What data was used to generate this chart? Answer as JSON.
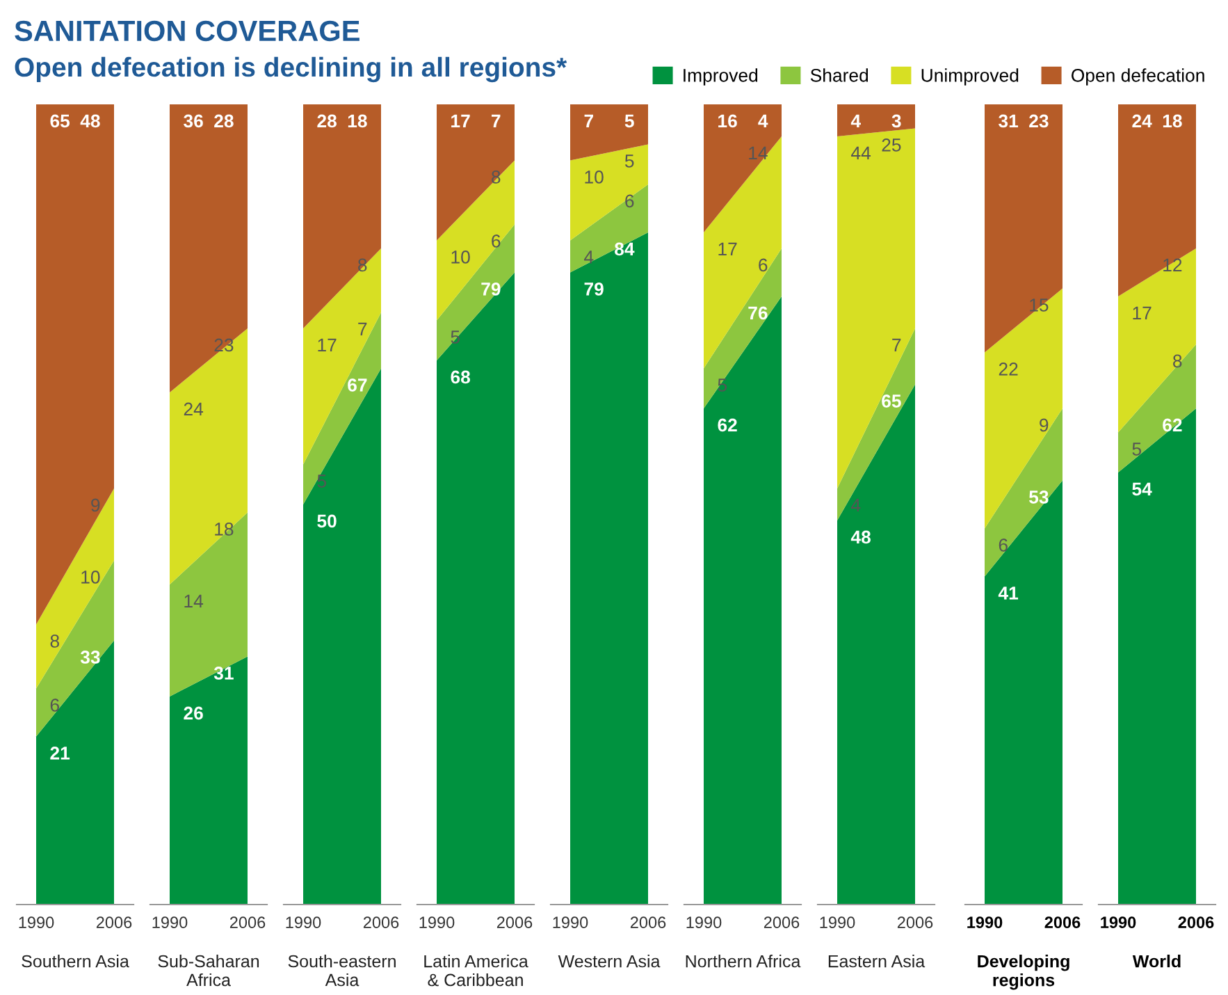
{
  "chart_data": [
    {
      "type": "area",
      "stacked": true,
      "title": "SANITATION COVERAGE",
      "subtitle": "Open defecation is declining in all regions*",
      "xlabel": "Southern Asia",
      "categories": [
        "1990",
        "2006"
      ],
      "data_labels": true,
      "legend": "top right",
      "series": [
        {
          "name": "Improved",
          "color": "#00923f",
          "values": [
            21,
            33
          ]
        },
        {
          "name": "Shared",
          "color": "#8dc63f",
          "values": [
            6,
            10
          ]
        },
        {
          "name": "Unimproved",
          "color": "#d7df23",
          "values": [
            8,
            9
          ]
        },
        {
          "name": "Open defecation",
          "color": "#b65c28",
          "values": [
            65,
            48
          ]
        }
      ]
    },
    {
      "type": "area",
      "stacked": true,
      "xlabel": "Sub-Saharan Africa",
      "categories": [
        "1990",
        "2006"
      ],
      "data_labels": true,
      "series": [
        {
          "color": "#00923f",
          "values": [
            26,
            31
          ]
        },
        {
          "color": "#8dc63f",
          "values": [
            14,
            18
          ]
        },
        {
          "color": "#d7df23",
          "values": [
            24,
            23
          ]
        },
        {
          "color": "#b65c28",
          "values": [
            36,
            28
          ]
        }
      ]
    },
    {
      "type": "area",
      "stacked": true,
      "xlabel": "South-eastern Asia",
      "categories": [
        "1990",
        "2006"
      ],
      "data_labels": true,
      "series": [
        {
          "color": "#00923f",
          "values": [
            50,
            67
          ]
        },
        {
          "color": "#8dc63f",
          "values": [
            5,
            7
          ]
        },
        {
          "color": "#d7df23",
          "values": [
            17,
            8
          ]
        },
        {
          "color": "#b65c28",
          "values": [
            28,
            18
          ]
        }
      ]
    },
    {
      "type": "area",
      "stacked": true,
      "xlabel": "Latin America & Caribbean",
      "categories": [
        "1990",
        "2006"
      ],
      "data_labels": true,
      "series": [
        {
          "color": "#00923f",
          "values": [
            68,
            79
          ]
        },
        {
          "color": "#8dc63f",
          "values": [
            5,
            6
          ]
        },
        {
          "color": "#d7df23",
          "values": [
            10,
            8
          ]
        },
        {
          "color": "#b65c28",
          "values": [
            17,
            7
          ]
        }
      ]
    },
    {
      "type": "area",
      "stacked": true,
      "xlabel": "Western Asia",
      "categories": [
        "1990",
        "2006"
      ],
      "data_labels": true,
      "series": [
        {
          "color": "#00923f",
          "values": [
            79,
            84
          ]
        },
        {
          "color": "#8dc63f",
          "values": [
            4,
            6
          ]
        },
        {
          "color": "#d7df23",
          "values": [
            10,
            5
          ]
        },
        {
          "color": "#b65c28",
          "values": [
            7,
            5
          ]
        }
      ]
    },
    {
      "type": "area",
      "stacked": true,
      "xlabel": "Northern Africa",
      "categories": [
        "1990",
        "2006"
      ],
      "data_labels": true,
      "series": [
        {
          "color": "#00923f",
          "values": [
            62,
            76
          ]
        },
        {
          "color": "#8dc63f",
          "values": [
            5,
            6
          ]
        },
        {
          "color": "#d7df23",
          "values": [
            17,
            14
          ]
        },
        {
          "color": "#b65c28",
          "values": [
            16,
            4
          ]
        }
      ]
    },
    {
      "type": "area",
      "stacked": true,
      "xlabel": "Eastern Asia",
      "categories": [
        "1990",
        "2006"
      ],
      "data_labels": true,
      "series": [
        {
          "color": "#00923f",
          "values": [
            48,
            65
          ]
        },
        {
          "color": "#8dc63f",
          "values": [
            4,
            7
          ]
        },
        {
          "color": "#d7df23",
          "values": [
            44,
            25
          ]
        },
        {
          "color": "#b65c28",
          "values": [
            4,
            3
          ]
        }
      ]
    },
    {
      "type": "area",
      "stacked": true,
      "xlabel": "Developing regions",
      "categories": [
        "1990",
        "2006"
      ],
      "data_labels": true,
      "series": [
        {
          "color": "#00923f",
          "values": [
            41,
            53
          ]
        },
        {
          "color": "#8dc63f",
          "values": [
            6,
            9
          ]
        },
        {
          "color": "#d7df23",
          "values": [
            22,
            15
          ]
        },
        {
          "color": "#b65c28",
          "values": [
            31,
            23
          ]
        }
      ]
    },
    {
      "type": "area",
      "stacked": true,
      "xlabel": "World",
      "categories": [
        "1990",
        "2006"
      ],
      "data_labels": true,
      "series": [
        {
          "color": "#00923f",
          "values": [
            54,
            62
          ]
        },
        {
          "color": "#8dc63f",
          "values": [
            5,
            8
          ]
        },
        {
          "color": "#d7df23",
          "values": [
            17,
            12
          ]
        },
        {
          "color": "#b65c28",
          "values": [
            24,
            18
          ]
        }
      ]
    }
  ]
}
